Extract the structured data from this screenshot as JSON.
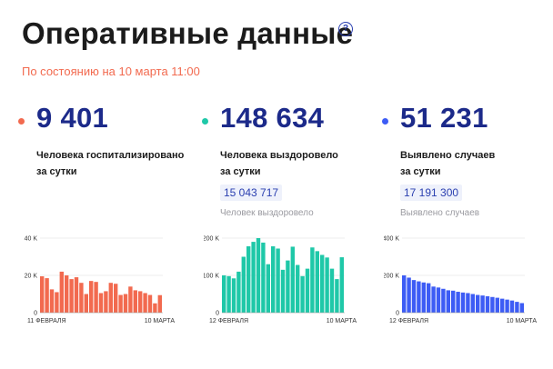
{
  "header": {
    "title": "Оперативные данные",
    "help_symbol": "?",
    "as_of": "По состоянию на 10 марта 11:00"
  },
  "stats": [
    {
      "value": "9 401",
      "description_line1": "Человека госпитализировано",
      "description_line2": "за сутки",
      "dot_color": "#f26a4f"
    },
    {
      "value": "148 634",
      "description_line1": "Человека выздоровело",
      "description_line2": "за сутки",
      "total": "15 043 717",
      "total_label": "Человек выздоровело",
      "dot_color": "#1fc8a8"
    },
    {
      "value": "51 231",
      "description_line1": "Выявлено случаев",
      "description_line2": "за сутки",
      "total": "17 191 300",
      "total_label": "Выявлено случаев",
      "dot_color": "#3d5cf5"
    }
  ],
  "chart_data": [
    {
      "type": "bar",
      "color": "#f26a4f",
      "y_ticks": [
        "40 K",
        "20 K",
        "0"
      ],
      "ylim": [
        0,
        40000
      ],
      "x_start_label": "11 ФЕВРАЛЯ",
      "x_end_label": "10 МАРТА",
      "values": [
        19500,
        18500,
        12500,
        11000,
        22000,
        20000,
        18000,
        19000,
        16000,
        10000,
        17000,
        16500,
        10500,
        11500,
        16000,
        15500,
        9500,
        10000,
        14000,
        12000,
        11500,
        10500,
        9500,
        5000,
        9401
      ]
    },
    {
      "type": "bar",
      "color": "#1fc8a8",
      "y_ticks": [
        "200 K",
        "100 K",
        "0"
      ],
      "ylim": [
        0,
        200000
      ],
      "x_start_label": "12 ФЕВРАЛЯ",
      "x_end_label": "10 МАРТА",
      "values": [
        100000,
        98000,
        92000,
        110000,
        150000,
        178000,
        190000,
        200000,
        188000,
        130000,
        178000,
        172000,
        115000,
        140000,
        177000,
        128000,
        98000,
        118000,
        175000,
        165000,
        155000,
        148000,
        118000,
        90000,
        148634
      ]
    },
    {
      "type": "bar",
      "color": "#3d5cf5",
      "y_ticks": [
        "400 K",
        "200 K",
        "0"
      ],
      "ylim": [
        0,
        400000
      ],
      "x_start_label": "12 ФЕВРАЛЯ",
      "x_end_label": "10 МАРТА",
      "values": [
        200000,
        188000,
        175000,
        168000,
        162000,
        158000,
        140000,
        135000,
        128000,
        120000,
        118000,
        112000,
        108000,
        105000,
        100000,
        95000,
        92000,
        88000,
        84000,
        80000,
        75000,
        70000,
        65000,
        58000,
        51231
      ]
    }
  ]
}
